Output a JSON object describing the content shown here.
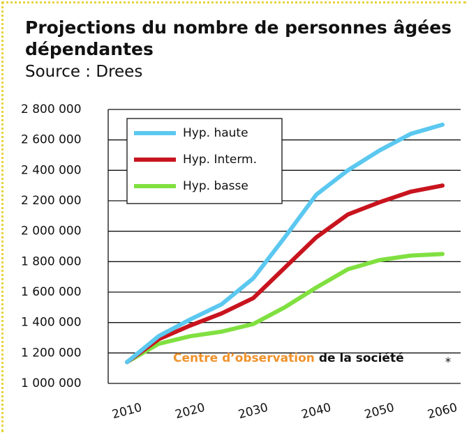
{
  "chart_data": {
    "type": "line",
    "title": "Projections du nombre de personnes âgées dépendantes",
    "subtitle": "Source : Drees",
    "x": [
      2010,
      2015,
      2020,
      2025,
      2030,
      2035,
      2040,
      2045,
      2050,
      2055,
      2060
    ],
    "series": [
      {
        "name": "Hyp. haute",
        "color": "#5bc8f0",
        "values": [
          1140000,
          1310000,
          1420000,
          1520000,
          1690000,
          1960000,
          2240000,
          2400000,
          2530000,
          2640000,
          2700000
        ]
      },
      {
        "name": "Hyp. Interm.",
        "color": "#c8141e",
        "values": [
          1140000,
          1290000,
          1380000,
          1460000,
          1560000,
          1760000,
          1960000,
          2110000,
          2190000,
          2260000,
          2300000
        ]
      },
      {
        "name": "Hyp. basse",
        "color": "#80e040",
        "values": [
          1140000,
          1260000,
          1310000,
          1340000,
          1390000,
          1500000,
          1630000,
          1750000,
          1810000,
          1840000,
          1850000
        ]
      }
    ],
    "xlim": [
      2010,
      2060
    ],
    "xticks": [
      2010,
      2020,
      2030,
      2040,
      2050,
      2060
    ],
    "ylim": [
      1000000,
      2800000
    ],
    "yticks": [
      {
        "value": 1000000,
        "label": "1 000 000"
      },
      {
        "value": 1200000,
        "label": "1 200 000"
      },
      {
        "value": 1400000,
        "label": "1 400 000"
      },
      {
        "value": 1600000,
        "label": "1 600 000"
      },
      {
        "value": 1800000,
        "label": "1 800 000"
      },
      {
        "value": 2000000,
        "label": "2 000 000"
      },
      {
        "value": 2200000,
        "label": "2 200 000"
      },
      {
        "value": 2400000,
        "label": "2 400 000"
      },
      {
        "value": 2600000,
        "label": "2 600 000"
      },
      {
        "value": 2800000,
        "label": "2 800 000"
      }
    ],
    "grid": true,
    "legend": "top-left",
    "annotation": [
      "Centre d’observation",
      "de la société",
      "*"
    ]
  }
}
